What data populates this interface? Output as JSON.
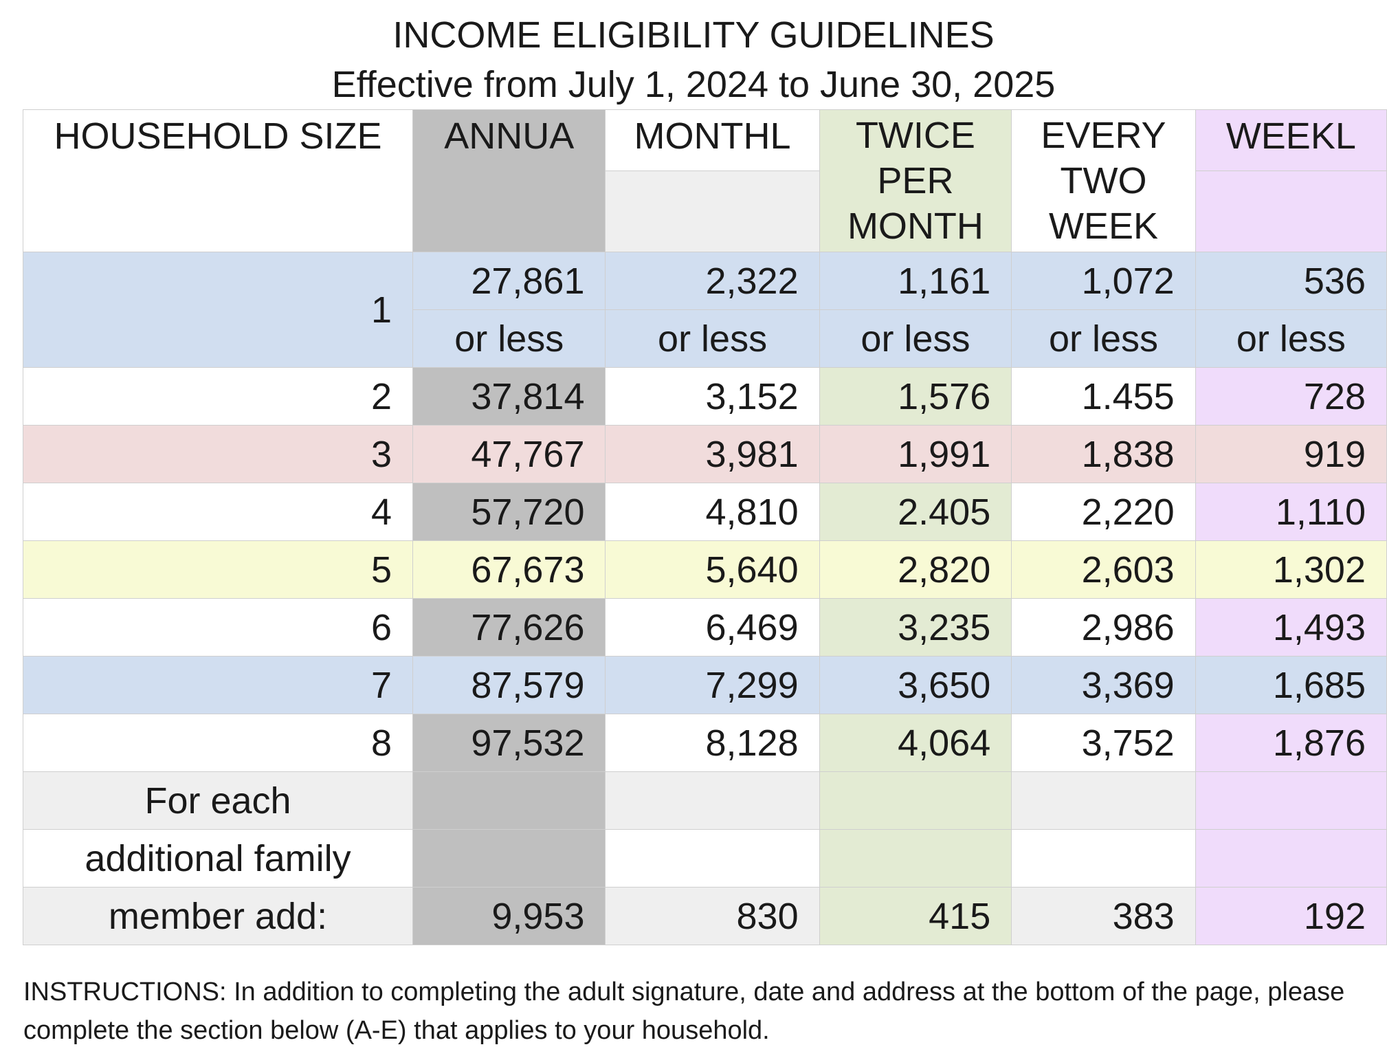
{
  "title": "INCOME ELIGIBILITY GUIDELINES",
  "subtitle": "Effective from July 1, 2024 to June 30, 2025",
  "headers": {
    "household_size": "HOUSEHOLD SIZE",
    "annual": "ANNUA",
    "monthly": "MONTHL",
    "twice_line1": "TWICE",
    "twice_line2": "PER",
    "twice_line3": "MONTH",
    "every_line1": "EVERY",
    "every_line2": "TWO",
    "every_line3": "WEEK",
    "weekly": "WEEKL"
  },
  "row1": {
    "size": "1",
    "annual": "27,861",
    "monthly": "2,322",
    "twice": "1,161",
    "every_two": "1,072",
    "weekly": "536",
    "qualifier": "or less"
  },
  "rows": [
    {
      "size": "2",
      "annual": "37,814",
      "monthly": "3,152",
      "twice": "1,576",
      "every_two": "1.455",
      "weekly": "728"
    },
    {
      "size": "3",
      "annual": "47,767",
      "monthly": "3,981",
      "twice": "1,991",
      "every_two": "1,838",
      "weekly": "919"
    },
    {
      "size": "4",
      "annual": "57,720",
      "monthly": "4,810",
      "twice": "2.405",
      "every_two": "2,220",
      "weekly": "1,110"
    },
    {
      "size": "5",
      "annual": "67,673",
      "monthly": "5,640",
      "twice": "2,820",
      "every_two": "2,603",
      "weekly": "1,302"
    },
    {
      "size": "6",
      "annual": "77,626",
      "monthly": "6,469",
      "twice": "3,235",
      "every_two": "2,986",
      "weekly": "1,493"
    },
    {
      "size": "7",
      "annual": "87,579",
      "monthly": "7,299",
      "twice": "3,650",
      "every_two": "3,369",
      "weekly": "1,685"
    },
    {
      "size": "8",
      "annual": "97,532",
      "monthly": "8,128",
      "twice": "4,064",
      "every_two": "3,752",
      "weekly": "1,876"
    }
  ],
  "additional": {
    "label_line1": "For each",
    "label_line2": "additional family",
    "label_line3": "member add:",
    "annual": "9,953",
    "monthly": "830",
    "twice": "415",
    "every_two": "383",
    "weekly": "192"
  },
  "instructions": "INSTRUCTIONS:  In addition to completing the adult signature, date and address at the bottom of the page, please complete the section below (A-E) that applies to your household."
}
